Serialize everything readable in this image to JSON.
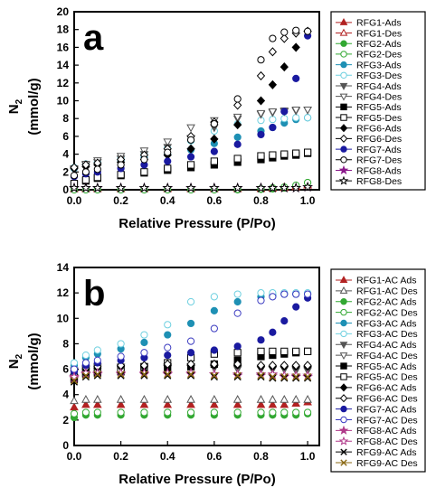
{
  "figure": {
    "panels": [
      "a",
      "b"
    ]
  },
  "chart_data": [
    {
      "type": "scatter",
      "panel": "a",
      "xlabel": "Relative Pressure (P/Po)",
      "ylabel_main": "N",
      "ylabel_sub": "2",
      "ylabel_unit": "(mmol/g)",
      "xlim": [
        0.0,
        1.05
      ],
      "ylim": [
        0,
        20
      ],
      "xticks": [
        "0.0",
        "0.2",
        "0.4",
        "0.6",
        "0.8",
        "1.0"
      ],
      "yticks": [
        "0",
        "2",
        "4",
        "6",
        "8",
        "10",
        "12",
        "14",
        "16",
        "18",
        "20"
      ],
      "x": [
        0.0,
        0.05,
        0.1,
        0.2,
        0.3,
        0.4,
        0.5,
        0.6,
        0.7,
        0.8,
        0.85,
        0.9,
        0.95,
        1.0
      ],
      "series": [
        {
          "name": "RFG1-Ads",
          "color": "#b22222",
          "marker": "triangle-up",
          "fill": true,
          "values": [
            0.1,
            0.1,
            0.1,
            0.1,
            0.1,
            0.1,
            0.1,
            0.1,
            0.1,
            0.1,
            0.15,
            0.2,
            0.3,
            0.5
          ]
        },
        {
          "name": "RFG1-Des",
          "color": "#b22222",
          "marker": "triangle-up",
          "fill": false,
          "values": [
            0.1,
            0.1,
            0.1,
            0.1,
            0.1,
            0.1,
            0.1,
            0.1,
            0.1,
            0.15,
            0.2,
            0.3,
            0.4,
            0.5
          ]
        },
        {
          "name": "RFG2-Ads",
          "color": "#32a832",
          "marker": "circle",
          "fill": true,
          "values": [
            0.0,
            0.0,
            0.0,
            0.0,
            0.0,
            0.0,
            0.0,
            0.0,
            0.0,
            0.05,
            0.1,
            0.2,
            0.4,
            0.8
          ]
        },
        {
          "name": "RFG2-Des",
          "color": "#32a832",
          "marker": "circle",
          "fill": false,
          "values": [
            0.0,
            0.0,
            0.0,
            0.0,
            0.0,
            0.0,
            0.0,
            0.0,
            0.05,
            0.1,
            0.2,
            0.3,
            0.5,
            0.8
          ]
        },
        {
          "name": "RFG3-Ads",
          "color": "#1e90b4",
          "marker": "circle",
          "fill": true,
          "values": [
            2.4,
            2.8,
            3.0,
            3.3,
            3.6,
            4.0,
            4.5,
            5.2,
            5.9,
            6.6,
            7.0,
            7.5,
            7.9,
            8.1
          ]
        },
        {
          "name": "RFG3-Des",
          "color": "#6fd0e0",
          "marker": "circle",
          "fill": false,
          "values": [
            2.5,
            2.9,
            3.2,
            3.6,
            4.1,
            4.7,
            5.5,
            6.6,
            7.4,
            7.8,
            7.9,
            8.0,
            8.1,
            8.1
          ]
        },
        {
          "name": "RFG4-Ads",
          "color": "#555555",
          "marker": "triangle-down",
          "fill": true,
          "values": [
            2.3,
            2.8,
            3.1,
            3.5,
            4.0,
            4.8,
            5.8,
            7.0,
            8.0,
            8.5,
            8.7,
            8.8,
            8.9,
            9.0
          ]
        },
        {
          "name": "RFG4-Des",
          "color": "#555555",
          "marker": "triangle-down",
          "fill": false,
          "values": [
            2.4,
            2.9,
            3.3,
            3.8,
            4.4,
            5.4,
            7.0,
            7.8,
            8.2,
            8.6,
            8.8,
            8.9,
            9.0,
            9.0
          ]
        },
        {
          "name": "RFG5-Ads",
          "color": "#000000",
          "marker": "square",
          "fill": true,
          "values": [
            0.6,
            1.0,
            1.3,
            1.6,
            1.9,
            2.2,
            2.5,
            2.8,
            3.1,
            3.4,
            3.6,
            3.8,
            3.9,
            4.1
          ]
        },
        {
          "name": "RFG5-Des",
          "color": "#000000",
          "marker": "square",
          "fill": false,
          "values": [
            0.7,
            1.1,
            1.4,
            1.7,
            2.0,
            2.4,
            2.8,
            3.2,
            3.5,
            3.8,
            3.9,
            4.0,
            4.1,
            4.2
          ]
        },
        {
          "name": "RFG6-Ads",
          "color": "#000000",
          "marker": "diamond",
          "fill": true,
          "values": [
            2.4,
            2.6,
            2.8,
            3.1,
            3.4,
            3.9,
            4.6,
            5.7,
            7.3,
            10.0,
            11.8,
            13.8,
            16.0,
            17.8
          ]
        },
        {
          "name": "RFG6-Des",
          "color": "#000000",
          "marker": "diamond",
          "fill": false,
          "values": [
            2.5,
            2.8,
            3.0,
            3.4,
            3.9,
            4.6,
            6.0,
            7.6,
            9.5,
            12.8,
            15.5,
            17.0,
            17.6,
            17.8
          ]
        },
        {
          "name": "RFG7-Ads",
          "color": "#1a1aa0",
          "marker": "circle",
          "fill": true,
          "values": [
            1.5,
            1.8,
            2.0,
            2.4,
            2.8,
            3.2,
            3.7,
            4.3,
            5.1,
            6.2,
            7.0,
            8.8,
            12.5,
            17.3
          ]
        },
        {
          "name": "RFG7-Des",
          "color": "#000000",
          "marker": "circle",
          "fill": false,
          "values": [
            1.6,
            2.0,
            2.3,
            2.8,
            3.4,
            4.2,
            5.6,
            7.4,
            10.2,
            14.6,
            17.0,
            17.7,
            17.9,
            17.8
          ]
        },
        {
          "name": "RFG8-Ads",
          "color": "#8b1a8b",
          "marker": "star",
          "fill": true,
          "values": [
            0.2,
            0.2,
            0.2,
            0.2,
            0.2,
            0.2,
            0.2,
            0.2,
            0.2,
            0.2,
            0.2,
            0.2,
            0.2,
            0.3
          ]
        },
        {
          "name": "RFG8-Des",
          "color": "#000000",
          "marker": "star",
          "fill": false,
          "values": [
            0.2,
            0.2,
            0.2,
            0.2,
            0.2,
            0.2,
            0.2,
            0.2,
            0.2,
            0.2,
            0.2,
            0.2,
            0.2,
            0.3
          ]
        }
      ]
    },
    {
      "type": "scatter",
      "panel": "b",
      "xlabel": "Relative Pressure (P/Po)",
      "ylabel_main": "N",
      "ylabel_sub": "2",
      "ylabel_unit": "(mmol/g)",
      "xlim": [
        0.0,
        1.05
      ],
      "ylim": [
        0,
        14
      ],
      "xticks": [
        "0.0",
        "0.2",
        "0.4",
        "0.6",
        "0.8",
        "1.0"
      ],
      "yticks": [
        "0",
        "2",
        "4",
        "6",
        "8",
        "10",
        "12",
        "14"
      ],
      "x": [
        0.0,
        0.05,
        0.1,
        0.2,
        0.3,
        0.4,
        0.5,
        0.6,
        0.7,
        0.8,
        0.85,
        0.9,
        0.95,
        1.0
      ],
      "series": [
        {
          "name": "RFG1-AC Ads",
          "color": "#b22222",
          "marker": "triangle-up",
          "fill": true,
          "values": [
            3.0,
            3.2,
            3.2,
            3.2,
            3.2,
            3.2,
            3.2,
            3.2,
            3.2,
            3.2,
            3.2,
            3.2,
            3.3,
            3.4
          ]
        },
        {
          "name": "RFG1-AC Des",
          "color": "#555555",
          "marker": "triangle-up",
          "fill": false,
          "values": [
            3.5,
            3.6,
            3.6,
            3.6,
            3.6,
            3.6,
            3.6,
            3.6,
            3.6,
            3.6,
            3.6,
            3.6,
            3.6,
            3.6
          ]
        },
        {
          "name": "RFG2-AC Ads",
          "color": "#32a832",
          "marker": "circle",
          "fill": true,
          "values": [
            2.2,
            2.4,
            2.4,
            2.4,
            2.4,
            2.4,
            2.4,
            2.4,
            2.4,
            2.4,
            2.4,
            2.4,
            2.4,
            2.5
          ]
        },
        {
          "name": "RFG2-AC Des",
          "color": "#32a832",
          "marker": "circle",
          "fill": false,
          "values": [
            2.5,
            2.6,
            2.6,
            2.6,
            2.6,
            2.6,
            2.6,
            2.6,
            2.6,
            2.6,
            2.6,
            2.6,
            2.6,
            2.6
          ]
        },
        {
          "name": "RFG3-AC Ads",
          "color": "#1e90b4",
          "marker": "circle",
          "fill": true,
          "values": [
            6.3,
            6.9,
            7.2,
            7.6,
            8.1,
            8.7,
            9.6,
            10.6,
            11.3,
            11.7,
            11.8,
            11.9,
            11.9,
            11.9
          ]
        },
        {
          "name": "RFG3-AC Des",
          "color": "#6fd0e0",
          "marker": "circle",
          "fill": false,
          "values": [
            6.5,
            7.1,
            7.5,
            8.0,
            8.7,
            9.5,
            11.3,
            11.7,
            11.9,
            12.0,
            12.0,
            12.0,
            12.0,
            12.0
          ]
        },
        {
          "name": "RFG4-AC Ads",
          "color": "#555555",
          "marker": "triangle-down",
          "fill": true,
          "values": [
            5.7,
            6.0,
            6.1,
            6.1,
            6.1,
            6.1,
            6.1,
            6.1,
            6.0,
            6.0,
            6.0,
            6.0,
            5.9,
            5.9
          ]
        },
        {
          "name": "RFG4-AC Des",
          "color": "#555555",
          "marker": "triangle-down",
          "fill": false,
          "values": [
            5.9,
            6.1,
            6.2,
            6.2,
            6.2,
            6.2,
            6.2,
            6.1,
            6.1,
            6.1,
            6.0,
            6.0,
            6.0,
            6.0
          ]
        },
        {
          "name": "RFG5-AC Ads",
          "color": "#000000",
          "marker": "square",
          "fill": true,
          "values": [
            5.2,
            5.6,
            5.7,
            5.8,
            5.9,
            6.0,
            6.2,
            6.4,
            6.7,
            7.0,
            7.1,
            7.2,
            7.3,
            7.4
          ]
        },
        {
          "name": "RFG5-AC Des",
          "color": "#000000",
          "marker": "square",
          "fill": false,
          "values": [
            5.3,
            5.7,
            5.8,
            6.0,
            6.2,
            6.5,
            6.9,
            7.2,
            7.3,
            7.4,
            7.4,
            7.4,
            7.4,
            7.4
          ]
        },
        {
          "name": "RFG6-AC Ads",
          "color": "#000000",
          "marker": "diamond",
          "fill": true,
          "values": [
            5.5,
            6.0,
            6.1,
            6.2,
            6.2,
            6.3,
            6.3,
            6.3,
            6.3,
            6.2,
            6.2,
            6.2,
            6.2,
            6.2
          ]
        },
        {
          "name": "RFG6-AC Des",
          "color": "#000000",
          "marker": "diamond",
          "fill": false,
          "values": [
            5.6,
            6.1,
            6.2,
            6.3,
            6.3,
            6.4,
            6.4,
            6.4,
            6.4,
            6.3,
            6.3,
            6.3,
            6.3,
            6.3
          ]
        },
        {
          "name": "RFG7-AC Ads",
          "color": "#1a1aa0",
          "marker": "circle",
          "fill": true,
          "values": [
            5.8,
            6.3,
            6.5,
            6.7,
            6.9,
            7.1,
            7.3,
            7.5,
            7.8,
            8.3,
            8.9,
            9.8,
            10.9,
            11.6
          ]
        },
        {
          "name": "RFG7-AC Des",
          "color": "#3a3ac0",
          "marker": "circle",
          "fill": false,
          "values": [
            6.0,
            6.5,
            6.7,
            7.0,
            7.3,
            7.7,
            8.2,
            9.2,
            10.4,
            11.4,
            11.7,
            11.9,
            11.9,
            11.9
          ]
        },
        {
          "name": "RFG8-AC Ads",
          "color": "#b03a8a",
          "marker": "star",
          "fill": true,
          "values": [
            5.3,
            5.6,
            5.6,
            5.6,
            5.6,
            5.6,
            5.6,
            5.6,
            5.5,
            5.5,
            5.5,
            5.4,
            5.4,
            5.4
          ]
        },
        {
          "name": "RFG8-AC Des",
          "color": "#b03a8a",
          "marker": "star",
          "fill": false,
          "values": [
            5.4,
            5.7,
            5.7,
            5.7,
            5.7,
            5.7,
            5.7,
            5.6,
            5.6,
            5.6,
            5.6,
            5.5,
            5.5,
            5.5
          ]
        },
        {
          "name": "RFG9-AC Ads",
          "color": "#000000",
          "marker": "x",
          "fill": false,
          "values": [
            5.0,
            5.4,
            5.5,
            5.5,
            5.5,
            5.5,
            5.5,
            5.4,
            5.4,
            5.4,
            5.3,
            5.3,
            5.3,
            5.3
          ]
        },
        {
          "name": "RFG9-AC Des",
          "color": "#8b6914",
          "marker": "x",
          "fill": false,
          "values": [
            5.1,
            5.5,
            5.6,
            5.6,
            5.6,
            5.6,
            5.6,
            5.5,
            5.5,
            5.5,
            5.4,
            5.4,
            5.4,
            5.4
          ]
        }
      ]
    }
  ]
}
